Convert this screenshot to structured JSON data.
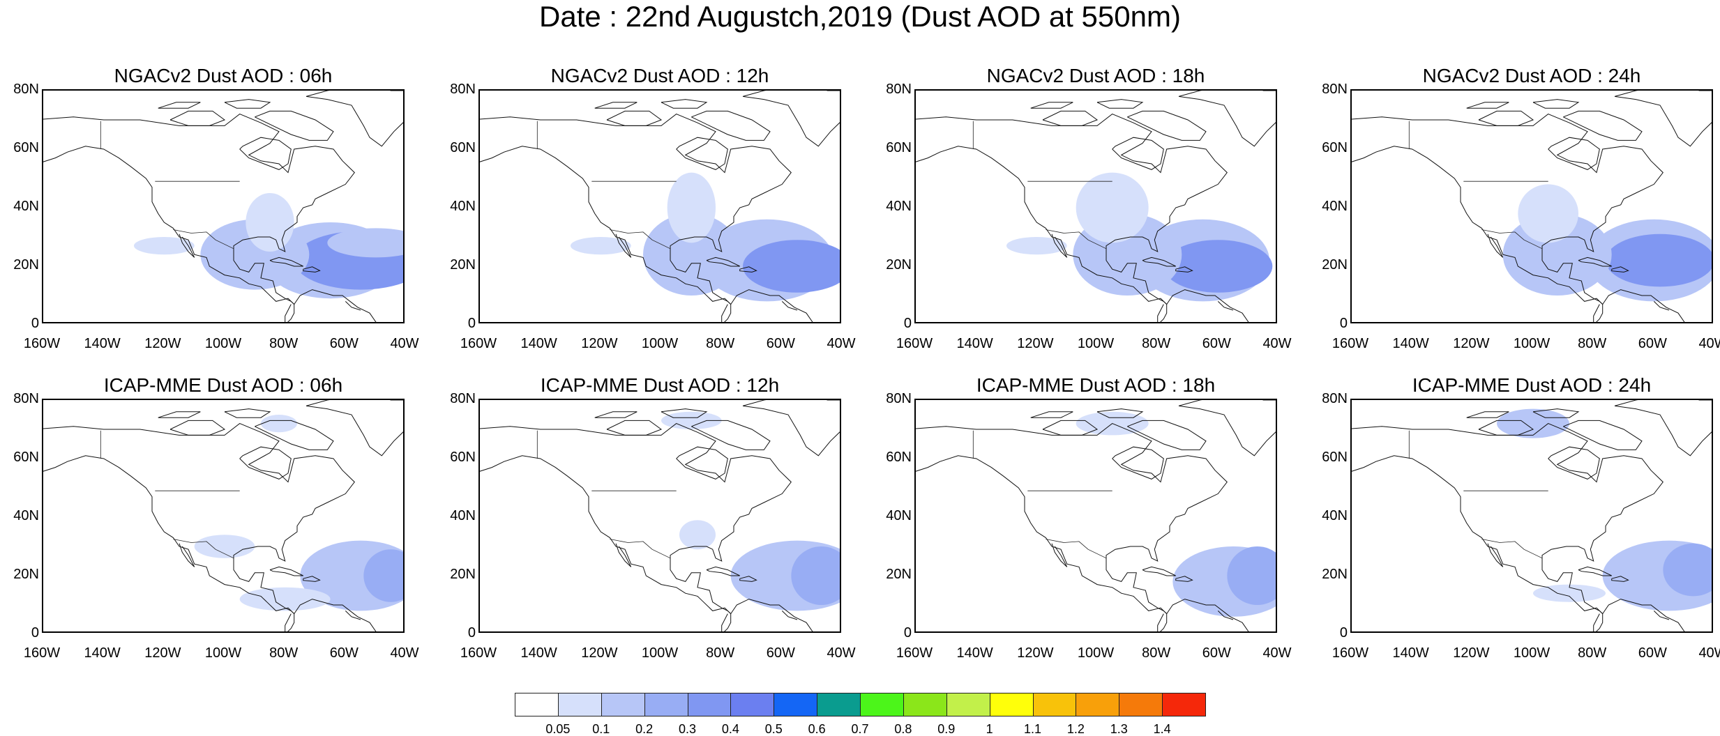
{
  "title": "Date : 22nd Augustch,2019 (Dust AOD at 550nm)",
  "axes": {
    "lat_labels": [
      "80N",
      "60N",
      "40N",
      "20N",
      "0"
    ],
    "lon_labels": [
      "160W",
      "140W",
      "120W",
      "100W",
      "80W",
      "60W",
      "40W"
    ],
    "lon_range": [
      -160,
      -40
    ],
    "lat_range": [
      0,
      80
    ]
  },
  "panels": [
    {
      "title": "NGACv2 Dust AOD : 06h"
    },
    {
      "title": "NGACv2 Dust AOD : 12h"
    },
    {
      "title": "NGACv2 Dust AOD : 18h"
    },
    {
      "title": "NGACv2 Dust AOD : 24h"
    },
    {
      "title": "ICAP-MME Dust AOD : 06h"
    },
    {
      "title": "ICAP-MME Dust AOD : 12h"
    },
    {
      "title": "ICAP-MME Dust AOD : 18h"
    },
    {
      "title": "ICAP-MME Dust AOD : 24h"
    }
  ],
  "colorbar": {
    "labels": [
      "0.05",
      "0.1",
      "0.2",
      "0.3",
      "0.4",
      "0.5",
      "0.6",
      "0.7",
      "0.8",
      "0.9",
      "1",
      "1.1",
      "1.2",
      "1.3",
      "1.4"
    ],
    "colors": [
      "#ffffff",
      "#d6e0fb",
      "#b7c6f7",
      "#98adf4",
      "#8097f2",
      "#6b7ff0",
      "#1466f5",
      "#0a9c8f",
      "#4cf51a",
      "#8be61a",
      "#c2f04a",
      "#ffff0a",
      "#f8c20a",
      "#f8a00a",
      "#f57a0a",
      "#f5280a"
    ]
  },
  "plumes": [
    [
      {
        "lon": -65,
        "lat": 22,
        "rx": 22,
        "ry": 13,
        "level": 2
      },
      {
        "lon": -55,
        "lat": 22,
        "rx": 22,
        "ry": 10,
        "level": 4
      },
      {
        "lon": -90,
        "lat": 24,
        "rx": 18,
        "ry": 12,
        "level": 2
      },
      {
        "lon": -85,
        "lat": 35,
        "rx": 8,
        "ry": 10,
        "level": 1
      },
      {
        "lon": -120,
        "lat": 27,
        "rx": 10,
        "ry": 3,
        "level": 1
      },
      {
        "lon": -50,
        "lat": 28,
        "rx": 16,
        "ry": 5,
        "level": 2
      }
    ],
    [
      {
        "lon": -65,
        "lat": 22,
        "rx": 22,
        "ry": 14,
        "level": 2
      },
      {
        "lon": -55,
        "lat": 20,
        "rx": 18,
        "ry": 9,
        "level": 4
      },
      {
        "lon": -90,
        "lat": 24,
        "rx": 16,
        "ry": 14,
        "level": 2
      },
      {
        "lon": -90,
        "lat": 40,
        "rx": 8,
        "ry": 12,
        "level": 1
      },
      {
        "lon": -120,
        "lat": 27,
        "rx": 10,
        "ry": 3,
        "level": 1
      }
    ],
    [
      {
        "lon": -65,
        "lat": 22,
        "rx": 22,
        "ry": 14,
        "level": 2
      },
      {
        "lon": -60,
        "lat": 20,
        "rx": 18,
        "ry": 9,
        "level": 4
      },
      {
        "lon": -90,
        "lat": 24,
        "rx": 18,
        "ry": 14,
        "level": 2
      },
      {
        "lon": -95,
        "lat": 40,
        "rx": 12,
        "ry": 12,
        "level": 1
      },
      {
        "lon": -120,
        "lat": 27,
        "rx": 10,
        "ry": 3,
        "level": 1
      }
    ],
    [
      {
        "lon": -60,
        "lat": 22,
        "rx": 22,
        "ry": 14,
        "level": 2
      },
      {
        "lon": -58,
        "lat": 22,
        "rx": 18,
        "ry": 9,
        "level": 4
      },
      {
        "lon": -92,
        "lat": 24,
        "rx": 18,
        "ry": 14,
        "level": 2
      },
      {
        "lon": -95,
        "lat": 38,
        "rx": 10,
        "ry": 10,
        "level": 1
      }
    ],
    [
      {
        "lon": -55,
        "lat": 20,
        "rx": 20,
        "ry": 12,
        "level": 2
      },
      {
        "lon": -45,
        "lat": 20,
        "rx": 9,
        "ry": 9,
        "level": 3
      },
      {
        "lon": -100,
        "lat": 30,
        "rx": 10,
        "ry": 4,
        "level": 1
      },
      {
        "lon": -80,
        "lat": 12,
        "rx": 15,
        "ry": 4,
        "level": 1
      },
      {
        "lon": -82,
        "lat": 72,
        "rx": 6,
        "ry": 3,
        "level": 1
      }
    ],
    [
      {
        "lon": -55,
        "lat": 20,
        "rx": 22,
        "ry": 12,
        "level": 2
      },
      {
        "lon": -47,
        "lat": 20,
        "rx": 10,
        "ry": 10,
        "level": 3
      },
      {
        "lon": -88,
        "lat": 34,
        "rx": 6,
        "ry": 5,
        "level": 1
      },
      {
        "lon": -90,
        "lat": 73,
        "rx": 10,
        "ry": 3,
        "level": 1
      }
    ],
    [
      {
        "lon": -55,
        "lat": 18,
        "rx": 20,
        "ry": 12,
        "level": 2
      },
      {
        "lon": -47,
        "lat": 20,
        "rx": 10,
        "ry": 10,
        "level": 3
      },
      {
        "lon": -95,
        "lat": 72,
        "rx": 12,
        "ry": 4,
        "level": 1
      }
    ],
    [
      {
        "lon": -55,
        "lat": 20,
        "rx": 22,
        "ry": 12,
        "level": 2
      },
      {
        "lon": -47,
        "lat": 22,
        "rx": 10,
        "ry": 9,
        "level": 3
      },
      {
        "lon": -100,
        "lat": 72,
        "rx": 12,
        "ry": 5,
        "level": 2
      },
      {
        "lon": -88,
        "lat": 14,
        "rx": 12,
        "ry": 3,
        "level": 1
      }
    ]
  ]
}
